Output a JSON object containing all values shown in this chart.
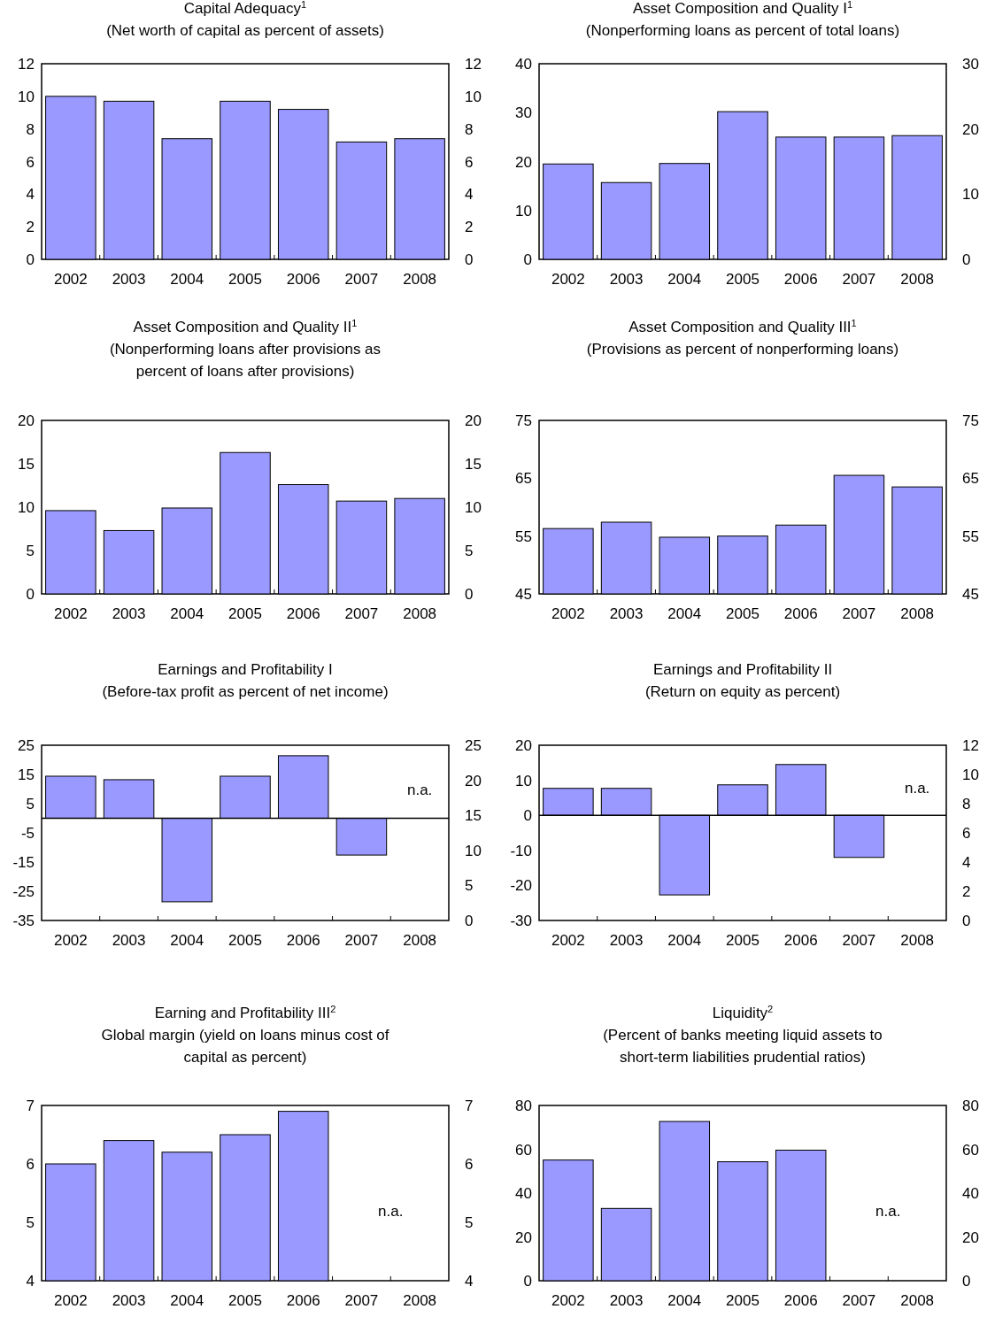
{
  "chart_data": [
    {
      "type": "bar",
      "title": "Capital Adequacy$^{1}$",
      "subtitle": "(Net worth of capital as percent of assets)",
      "categories": [
        "2002",
        "2003",
        "2004",
        "2005",
        "2006",
        "2007",
        "2008"
      ],
      "values": [
        10,
        9.7,
        7.4,
        9.7,
        9.2,
        7.2,
        7.4
      ],
      "color": "#9999ff",
      "ylim": [
        0,
        12
      ],
      "yticks": [
        0,
        2,
        4,
        6,
        8,
        10,
        12
      ],
      "y2lim": [
        0,
        12
      ],
      "y2ticks": [
        0,
        2,
        4,
        6,
        8,
        10,
        12
      ]
    },
    {
      "type": "bar",
      "title": "Asset Composition and Quality I$^{1}$",
      "subtitle": "(Nonperforming loans as percent of total loans)",
      "categories": [
        "2002",
        "2003",
        "2004",
        "2005",
        "2006",
        "2007",
        "2008"
      ],
      "values": [
        19.5,
        15.7,
        19.6,
        30.2,
        25,
        25,
        25.3
      ],
      "color": "#9999ff",
      "ylim": [
        0,
        40
      ],
      "yticks": [
        0,
        10,
        20,
        30,
        40
      ],
      "y2lim": [
        0,
        30
      ],
      "y2ticks": [
        0,
        10,
        20,
        30
      ]
    },
    {
      "type": "bar",
      "title": "Asset Composition and Quality II$^{1}$",
      "subtitle": "(Nonperforming loans after provisions as percent of loans after provisions)",
      "categories": [
        "2002",
        "2003",
        "2004",
        "2005",
        "2006",
        "2007",
        "2008"
      ],
      "values": [
        9.6,
        7.3,
        9.9,
        16.3,
        12.6,
        10.7,
        11
      ],
      "color": "#9999ff",
      "ylim": [
        0,
        20
      ],
      "yticks": [
        0,
        5,
        10,
        15,
        20
      ],
      "y2lim": [
        0,
        20
      ],
      "y2ticks": [
        0,
        5,
        10,
        15,
        20
      ]
    },
    {
      "type": "bar",
      "title": "Asset Composition and Quality III$^{1}$",
      "subtitle": "(Provisions as percent of nonperforming loans)",
      "categories": [
        "2002",
        "2003",
        "2004",
        "2005",
        "2006",
        "2007",
        "2008"
      ],
      "values": [
        56.3,
        57.4,
        54.8,
        55,
        56.9,
        65.5,
        63.5
      ],
      "color": "#9999ff",
      "ylim": [
        45,
        75
      ],
      "yticks": [
        45,
        55,
        65,
        75
      ],
      "y2lim": [
        45,
        75
      ],
      "y2ticks": [
        45,
        55,
        65,
        75
      ]
    },
    {
      "type": "bar",
      "title": "Earnings and Profitability I",
      "subtitle": "(Before-tax profit as percent of net income)",
      "categories": [
        "2002",
        "2003",
        "2004",
        "2005",
        "2006",
        "2007",
        "2008"
      ],
      "values": [
        14.4,
        13.2,
        -28.6,
        14.4,
        21.4,
        -12.6,
        null
      ],
      "color": "#9999ff",
      "ylim": [
        -35,
        25
      ],
      "yticks": [
        -35,
        -25,
        -15,
        -5,
        5,
        15,
        25
      ],
      "y2lim": [
        0,
        25
      ],
      "y2ticks": [
        0,
        5,
        10,
        15,
        20,
        25
      ],
      "annotations": [
        "n.a."
      ]
    },
    {
      "type": "bar",
      "title": "Earnings and Profitability II",
      "subtitle": "(Return on equity as percent)",
      "categories": [
        "2002",
        "2003",
        "2004",
        "2005",
        "2006",
        "2007",
        "2008"
      ],
      "values": [
        7.7,
        7.7,
        -22.7,
        8.7,
        14.5,
        -12,
        null
      ],
      "color": "#9999ff",
      "ylim": [
        -30,
        20
      ],
      "yticks": [
        -30,
        -20,
        -10,
        0,
        10,
        20
      ],
      "y2lim": [
        0,
        12
      ],
      "y2ticks": [
        0,
        2,
        4,
        6,
        8,
        10,
        12
      ],
      "annotations": [
        "n.a."
      ]
    },
    {
      "type": "bar",
      "title": "Earning and Profitability III$^{2}$",
      "subtitle": "Global margin (yield on loans minus cost of capital as percent)",
      "categories": [
        "2002",
        "2003",
        "2004",
        "2005",
        "2006",
        "2007",
        "2008"
      ],
      "values": [
        6,
        6.4,
        6.2,
        6.5,
        6.9,
        null,
        null
      ],
      "color": "#9999ff",
      "ylim": [
        4,
        7
      ],
      "yticks": [
        4,
        5,
        6,
        7
      ],
      "y2lim": [
        4,
        7
      ],
      "y2ticks": [
        4,
        5,
        6,
        7
      ],
      "annotations": [
        "n.a."
      ]
    },
    {
      "type": "bar",
      "title": "Liquidity$^{2}$",
      "subtitle": "(Percent of banks meeting liquid assets to short-term liabilities prudential ratios)",
      "categories": [
        "2002",
        "2003",
        "2004",
        "2005",
        "2006",
        "2007",
        "2008"
      ],
      "values": [
        55.1,
        33,
        72.7,
        54.3,
        59.6,
        null,
        null
      ],
      "color": "#9999ff",
      "ylim": [
        0,
        80
      ],
      "yticks": [
        0,
        20,
        40,
        60,
        80
      ],
      "y2lim": [
        0,
        80
      ],
      "y2ticks": [
        0,
        20,
        40,
        60,
        80
      ],
      "annotations": [
        "n.a."
      ]
    }
  ]
}
